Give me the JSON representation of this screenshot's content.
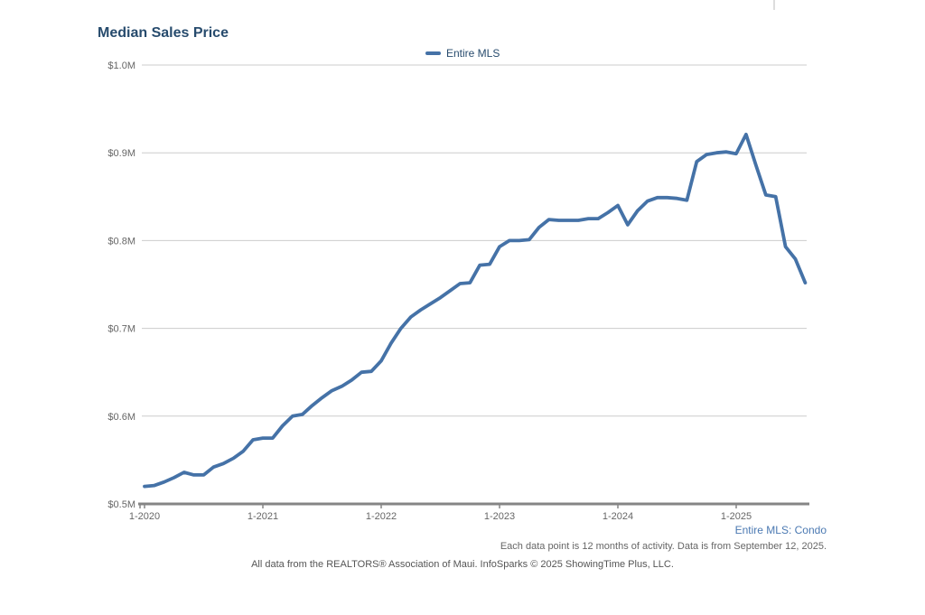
{
  "chart_data": {
    "type": "line",
    "title": "Median Sales Price",
    "unit": "USD millions",
    "x_start": "1-2020",
    "x_end": "8-2025",
    "x_tick_labels": [
      "1-2020",
      "1-2021",
      "1-2022",
      "1-2023",
      "1-2024",
      "1-2025"
    ],
    "x_tick_month_indices": [
      0,
      12,
      24,
      36,
      48,
      60
    ],
    "y_tick_labels": [
      "$0.5M",
      "$0.6M",
      "$0.7M",
      "$0.8M",
      "$0.9M",
      "$1.0M"
    ],
    "y_tick_values": [
      0.5,
      0.6,
      0.7,
      0.8,
      0.9,
      1.0
    ],
    "ylim": [
      0.5,
      1.0
    ],
    "grid": "horizontal-only",
    "legend_position": "top-center",
    "series": [
      {
        "name": "Entire MLS",
        "color": "#4572a7",
        "values": [
          0.52,
          0.521,
          0.525,
          0.53,
          0.536,
          0.533,
          0.533,
          0.542,
          0.546,
          0.552,
          0.56,
          0.573,
          0.575,
          0.575,
          0.589,
          0.6,
          0.602,
          0.612,
          0.621,
          0.629,
          0.634,
          0.641,
          0.65,
          0.651,
          0.663,
          0.683,
          0.7,
          0.713,
          0.721,
          0.728,
          0.735,
          0.743,
          0.751,
          0.752,
          0.772,
          0.773,
          0.793,
          0.8,
          0.8,
          0.801,
          0.815,
          0.824,
          0.823,
          0.823,
          0.823,
          0.825,
          0.825,
          0.832,
          0.84,
          0.818,
          0.834,
          0.845,
          0.849,
          0.849,
          0.848,
          0.846,
          0.89,
          0.898,
          0.9,
          0.901,
          0.899,
          0.921,
          0.886,
          0.852,
          0.85,
          0.793,
          0.779,
          0.752
        ]
      }
    ]
  },
  "footer": {
    "series_caption": "Entire MLS: Condo",
    "data_note": "Each data point is 12 months of activity. Data is from September 12, 2025.",
    "attribution": "All data from the REALTORS® Association of Maui. InfoSparks © 2025 ShowingTime Plus, LLC."
  }
}
